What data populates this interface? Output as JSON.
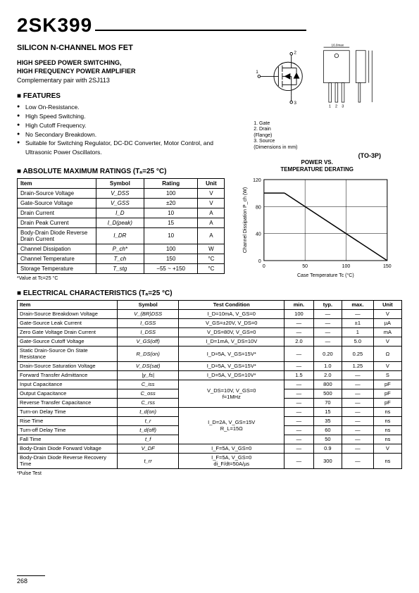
{
  "part_number": "2SK399",
  "subtitle": "SILICON N-CHANNEL MOS FET",
  "subhead_l1": "HIGH SPEED POWER SWITCHING,",
  "subhead_l2": "HIGH FREQUENCY POWER AMPLIFIER",
  "complementary": "Complementary pair with 2SJ113",
  "features_title": "FEATURES",
  "features": [
    "Low On-Resistance.",
    "High Speed Switching.",
    "High Cutoff Frequency.",
    "No Secondary Breakdown.",
    "Suitable for Switching Regulator, DC-DC Converter, Motor Control, and Ultrasonic Power Oscillators."
  ],
  "pins": {
    "p1": "1. Gate",
    "p2": "2. Drain",
    "p2b": "   (Flange)",
    "p3": "3. Source",
    "dim": "(Dimensions in mm)"
  },
  "package_name": "(TO-3P)",
  "abs_title": "ABSOLUTE MAXIMUM RATINGS (Tₐ=25 °C)",
  "abs_headers": [
    "Item",
    "Symbol",
    "Rating",
    "Unit"
  ],
  "abs_rows": [
    [
      "Drain-Source Voltage",
      "V_DSS",
      "100",
      "V"
    ],
    [
      "Gate-Source Voltage",
      "V_GSS",
      "±20",
      "V"
    ],
    [
      "Drain Current",
      "I_D",
      "10",
      "A"
    ],
    [
      "Drain Peak Current",
      "I_D(peak)",
      "15",
      "A"
    ],
    [
      "Body-Drain Diode Reverse Drain Current",
      "I_DR",
      "10",
      "A"
    ],
    [
      "Channel Dissipation",
      "P_ch*",
      "100",
      "W"
    ],
    [
      "Channel Temperature",
      "T_ch",
      "150",
      "°C"
    ],
    [
      "Storage Temperature",
      "T_stg",
      "−55 ~ +150",
      "°C"
    ]
  ],
  "abs_footnote": "*Value at Tc=25 °C",
  "chart": {
    "title_l1": "POWER VS.",
    "title_l2": "TEMPERATURE DERATING",
    "ylabel": "Channel Dissipation P_ch (W)",
    "xlabel": "Case Temperature Tc (°C)",
    "xlim": [
      0,
      150
    ],
    "ylim": [
      0,
      120
    ],
    "xticks": [
      0,
      50,
      100,
      150
    ],
    "yticks": [
      0,
      40,
      80,
      120
    ],
    "line": [
      [
        25,
        100
      ],
      [
        150,
        0
      ]
    ],
    "line_color": "#000000",
    "grid_color": "#000000",
    "background": "#ffffff"
  },
  "elec_title": "ELECTRICAL CHARACTERISTICS (Tₐ=25 °C)",
  "elec_headers": [
    "Item",
    "Symbol",
    "Test Condition",
    "min.",
    "typ.",
    "max.",
    "Unit"
  ],
  "elec_rows": [
    [
      "Drain-Source Breakdown Voltage",
      "V_(BR)DSS",
      "I_D=10mA, V_GS=0",
      "100",
      "—",
      "—",
      "V"
    ],
    [
      "Gate-Source Leak Current",
      "I_GSS",
      "V_GS=±20V, V_DS=0",
      "—",
      "—",
      "±1",
      "µA"
    ],
    [
      "Zero Gate Voltage Drain Current",
      "I_DSS",
      "V_DS=80V, V_GS=0",
      "—",
      "—",
      "1",
      "mA"
    ],
    [
      "Gate-Source Cutoff Voltage",
      "V_GS(off)",
      "I_D=1mA, V_DS=10V",
      "2.0",
      "—",
      "5.0",
      "V"
    ],
    [
      "Static Drain-Source On State Resistance",
      "R_DS(on)",
      "I_D=5A, V_GS=15V*",
      "—",
      "0.20",
      "0.25",
      "Ω"
    ],
    [
      "Drain-Source Saturation Voltage",
      "V_DS(sat)",
      "I_D=5A, V_GS=15V*",
      "—",
      "1.0",
      "1.25",
      "V"
    ],
    [
      "Forward Transfer Admittance",
      "|y_fs|",
      "I_D=5A, V_DS=10V*",
      "1.5",
      "2.0",
      "—",
      "S"
    ],
    [
      "Input Capacitance",
      "C_iss",
      "",
      "—",
      "800",
      "—",
      "pF"
    ],
    [
      "Output Capacitance",
      "C_oss",
      "V_DS=10V, V_GS=0\nf=1MHz",
      "—",
      "500",
      "—",
      "pF"
    ],
    [
      "Reverse Transfer Capacitance",
      "C_rss",
      "",
      "—",
      "70",
      "—",
      "pF"
    ],
    [
      "Turn-on Delay Time",
      "t_d(on)",
      "",
      "—",
      "15",
      "—",
      "ns"
    ],
    [
      "Rise Time",
      "t_r",
      "I_D=2A, V_GS=15V\nR_L=15Ω",
      "—",
      "35",
      "—",
      "ns"
    ],
    [
      "Turn-off Delay Time",
      "t_d(off)",
      "",
      "—",
      "60",
      "—",
      "ns"
    ],
    [
      "Fall Time",
      "t_f",
      "",
      "—",
      "50",
      "—",
      "ns"
    ],
    [
      "Body-Drain Diode Forward Voltage",
      "V_DF",
      "I_F=5A, V_GS=0",
      "—",
      "0.9",
      "—",
      "V"
    ],
    [
      "Body-Drain Diode Reverse Recovery Time",
      "t_rr",
      "I_F=5A, V_GS=0\ndi_F/dt=50A/µs",
      "—",
      "300",
      "—",
      "ns"
    ]
  ],
  "elec_merge": {
    "cap_group": {
      "start": 7,
      "span": 3
    },
    "switch_group": {
      "start": 10,
      "span": 4
    }
  },
  "elec_footnote": "*Pulse Test",
  "page_number": "268"
}
